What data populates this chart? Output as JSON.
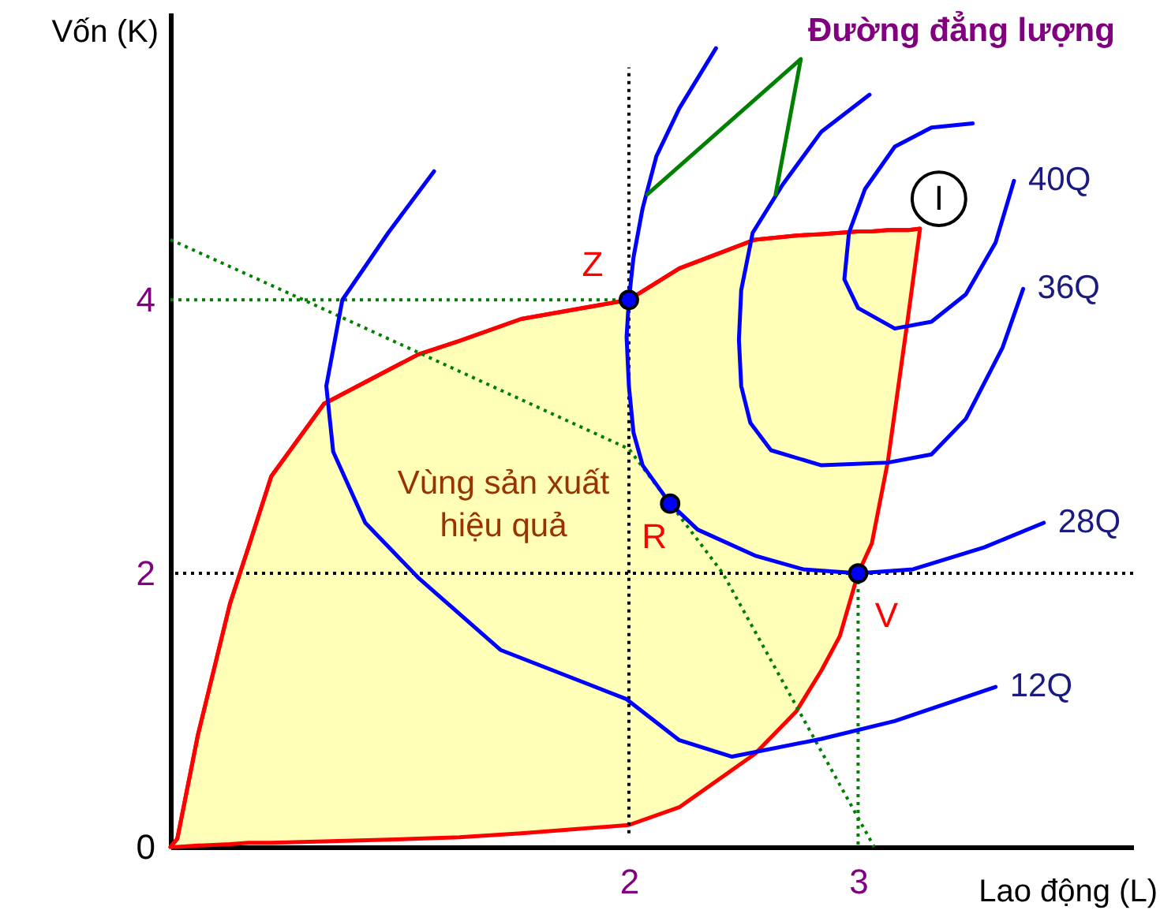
{
  "chart_data": {
    "type": "line",
    "xlabel": "Lao động (L)",
    "ylabel": "Vốn (K)",
    "xlim": [
      0,
      4.2
    ],
    "ylim": [
      0,
      6.1
    ],
    "xticks": [
      2,
      3
    ],
    "yticks": [
      0,
      2,
      4
    ],
    "grid": false,
    "marker": "none",
    "line_style": "solid",
    "ref_lines": [
      {
        "axis": "y",
        "value": 2,
        "color": "#000000",
        "line_style": "dotted"
      }
    ],
    "series": [
      {
        "color": "#ff0000",
        "x": [
          0,
          0.03,
          0.12,
          0.26,
          0.34,
          0.44,
          0.67,
          1.08,
          1.26,
          1.53,
          2.0,
          2.22,
          2.55,
          2.73,
          2.84,
          2.92,
          3.0,
          3.06,
          3.13,
          3.16,
          3.22,
          3.27
        ],
        "values": [
          0,
          0.06,
          0.82,
          1.78,
          2.19,
          2.71,
          3.24,
          3.6,
          3.7,
          3.86,
          4.0,
          4.23,
          4.44,
          4.47,
          4.48,
          4.49,
          4.5,
          4.5,
          4.51,
          4.51,
          4.51,
          4.52
        ],
        "lower": [
          0,
          0,
          0.01,
          0.02,
          0.03,
          0.03,
          0.04,
          0.06,
          0.07,
          0.1,
          0.16,
          0.29,
          0.68,
          0.99,
          1.29,
          1.54,
          2.0,
          2.22,
          2.82,
          3.18,
          3.9,
          4.52
        ],
        "upper": [
          0,
          0.06,
          0.82,
          1.78,
          2.19,
          2.71,
          3.24,
          3.6,
          3.7,
          3.86,
          4.0,
          4.23,
          4.44,
          4.47,
          4.48,
          4.49,
          4.5,
          4.5,
          4.51,
          4.51,
          4.51,
          4.52
        ]
      },
      {
        "color": "#000000",
        "line_style": "dotted",
        "x": [
          2,
          2
        ],
        "values": [
          0.1,
          5.7
        ]
      },
      {
        "color": "#008000",
        "line_style": "dotted",
        "x": [
          0,
          2
        ],
        "values": [
          4,
          4
        ]
      },
      {
        "color": "#008000",
        "line_style": "dotted",
        "x": [
          3,
          3
        ],
        "values": [
          2,
          0
        ]
      },
      {
        "color": "#008000",
        "line_style": "dotted",
        "x": [
          0,
          0.58,
          2.0,
          2.41,
          3.07
        ],
        "values": [
          4.44,
          4.0,
          2.91,
          2.0,
          0
        ]
      },
      {
        "name": "12Q",
        "color": "#0000ff",
        "x": [
          1.15,
          0.95,
          0.75,
          0.68,
          0.71,
          0.85,
          1.08,
          1.44,
          1.99,
          2.22,
          2.45,
          2.84,
          3.16,
          3.6
        ],
        "values": [
          4.94,
          4.49,
          4.0,
          3.37,
          2.89,
          2.37,
          1.97,
          1.44,
          1.08,
          0.78,
          0.66,
          0.79,
          0.92,
          1.17
        ]
      },
      {
        "name": "28Q",
        "color": "#0000ff",
        "x": [
          2.38,
          2.22,
          2.12,
          2.06,
          2.02,
          2.0,
          1.99,
          2.0,
          2.02,
          2.06,
          2.18,
          2.3,
          2.55,
          2.76,
          3.0,
          3.24,
          3.55,
          3.81
        ],
        "values": [
          5.84,
          5.4,
          5.05,
          4.67,
          4.31,
          4.0,
          3.73,
          3.37,
          3.03,
          2.79,
          2.51,
          2.32,
          2.13,
          2.03,
          2.0,
          2.03,
          2.19,
          2.37
        ]
      },
      {
        "name": "36Q",
        "color": "#0000ff",
        "x": [
          3.05,
          2.84,
          2.67,
          2.54,
          2.49,
          2.48,
          2.49,
          2.53,
          2.62,
          2.84,
          3.13,
          3.32,
          3.47,
          3.63,
          3.72
        ],
        "values": [
          5.5,
          5.23,
          4.84,
          4.49,
          4.07,
          3.71,
          3.37,
          3.1,
          2.9,
          2.79,
          2.81,
          2.87,
          3.13,
          3.65,
          4.08
        ]
      },
      {
        "name": "40Q",
        "color": "#0000ff",
        "x": [
          3.5,
          3.32,
          3.16,
          3.03,
          2.96,
          2.94,
          3.0,
          3.16,
          3.32,
          3.47,
          3.6,
          3.68
        ],
        "values": [
          5.29,
          5.26,
          5.12,
          4.81,
          4.49,
          4.15,
          3.94,
          3.79,
          3.84,
          4.04,
          4.42,
          4.87
        ]
      },
      {
        "color": "#008000",
        "x": [
          2.08,
          2.75,
          2.64
        ],
        "values": [
          4.77,
          5.76,
          4.77
        ]
      },
      {
        "type": "scatter",
        "color": "#0000ff",
        "marker": "circle",
        "x": [
          2,
          2.18,
          3
        ],
        "values": [
          4,
          2.51,
          2
        ]
      }
    ],
    "annotations": [
      "Đường đẳng lượng",
      "Vùng sản xuất\nhiệu quả",
      {
        "text": "Z",
        "x": 2,
        "y": 4
      },
      {
        "text": "R",
        "x": 2.18,
        "y": 2.51
      },
      {
        "text": "V",
        "x": 3,
        "y": 2
      },
      {
        "text": "I",
        "x": 3.27,
        "y": 4.52
      }
    ]
  }
}
